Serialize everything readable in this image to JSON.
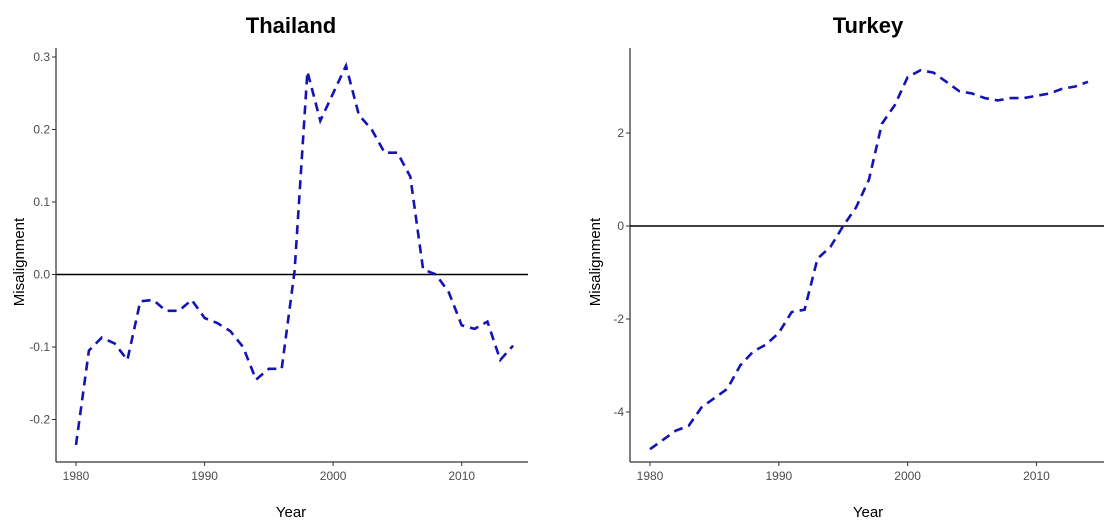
{
  "chart_data": [
    {
      "type": "line",
      "title": "Thailand",
      "xlabel": "Year",
      "ylabel": "Misalignment",
      "xlim": [
        1980,
        2015
      ],
      "ylim": [
        -0.25,
        0.3
      ],
      "xticks": [
        1980,
        1990,
        2000,
        2010
      ],
      "yticks": [
        -0.2,
        -0.1,
        0.0,
        0.1,
        0.2,
        0.3
      ],
      "ytick_labels": [
        "-0.2",
        "-0.1",
        "0.0",
        "0.1",
        "0.2",
        "0.3"
      ],
      "hline": 0,
      "line_color": "#1414b4",
      "line_style": "dashed",
      "grid": false,
      "x": [
        1980,
        1981,
        1982,
        1983,
        1984,
        1985,
        1986,
        1987,
        1988,
        1989,
        1990,
        1991,
        1992,
        1993,
        1994,
        1995,
        1996,
        1997,
        1998,
        1999,
        2000,
        2001,
        2002,
        2003,
        2004,
        2005,
        2006,
        2007,
        2008,
        2009,
        2010,
        2011,
        2012,
        2013,
        2014
      ],
      "y": [
        -0.235,
        -0.105,
        -0.087,
        -0.095,
        -0.118,
        -0.037,
        -0.035,
        -0.05,
        -0.05,
        -0.035,
        -0.06,
        -0.067,
        -0.078,
        -0.1,
        -0.145,
        -0.13,
        -0.13,
        0.005,
        0.28,
        0.212,
        0.25,
        0.288,
        0.22,
        0.2,
        0.168,
        0.168,
        0.135,
        0.007,
        0.0,
        -0.025,
        -0.07,
        -0.075,
        -0.065,
        -0.118,
        -0.098
      ]
    },
    {
      "type": "line",
      "title": "Turkey",
      "xlabel": "Year",
      "ylabel": "Misalignment",
      "xlim": [
        1980,
        2014
      ],
      "ylim": [
        -5,
        3.7
      ],
      "xticks": [
        1980,
        1990,
        2000,
        2010
      ],
      "yticks": [
        -4,
        -2,
        0,
        2
      ],
      "ytick_labels": [
        "-4",
        "-2",
        "0",
        "2"
      ],
      "hline": 0,
      "line_color": "#1414b4",
      "line_style": "dashed",
      "grid": false,
      "x": [
        1980,
        1981,
        1982,
        1983,
        1984,
        1985,
        1986,
        1987,
        1988,
        1989,
        1990,
        1991,
        1992,
        1993,
        1994,
        1995,
        1996,
        1997,
        1998,
        1999,
        2000,
        2001,
        2002,
        2003,
        2004,
        2005,
        2006,
        2007,
        2008,
        2009,
        2010,
        2011,
        2012,
        2013,
        2014
      ],
      "y": [
        -4.8,
        -4.6,
        -4.4,
        -4.3,
        -3.9,
        -3.7,
        -3.5,
        -3.0,
        -2.7,
        -2.55,
        -2.3,
        -1.85,
        -1.8,
        -0.7,
        -0.45,
        0.0,
        0.4,
        1.0,
        2.2,
        2.6,
        3.2,
        3.35,
        3.3,
        3.1,
        2.9,
        2.85,
        2.75,
        2.7,
        2.75,
        2.75,
        2.8,
        2.85,
        2.95,
        3.0,
        3.1
      ]
    }
  ]
}
